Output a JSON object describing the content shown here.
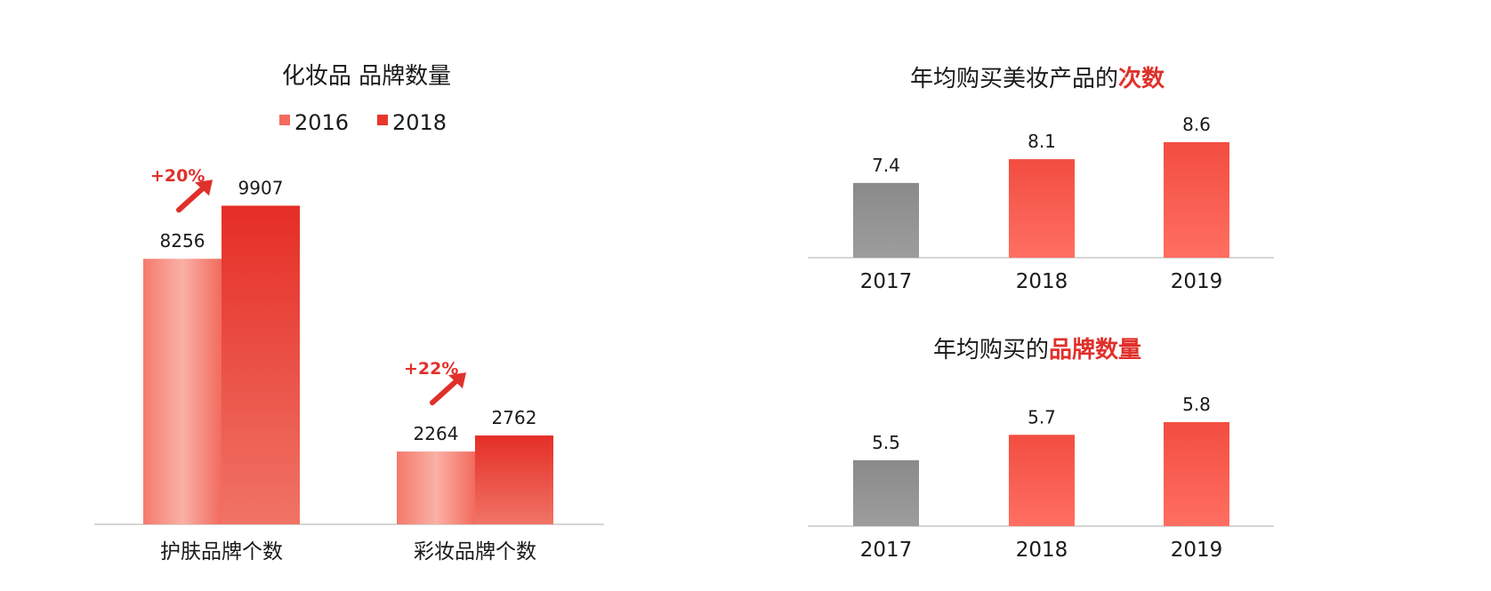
{
  "colors": {
    "accent": "#e0302b",
    "series_2016": "#f26b5e",
    "series_2018": "#e8362c",
    "gray": "#8f8f8f",
    "axis": "#d6d6d6"
  },
  "chart_data": [
    {
      "type": "bar",
      "title": "化妆品 品牌数量",
      "categories": [
        "护肤品牌个数",
        "彩妆品牌个数"
      ],
      "series": [
        {
          "name": "2016",
          "values": [
            8256,
            2264
          ]
        },
        {
          "name": "2018",
          "values": [
            9907,
            2762
          ]
        }
      ],
      "growth_labels": [
        "+20%",
        "+22%"
      ],
      "legend": "top",
      "ylim": [
        0,
        10500
      ],
      "grid": false
    },
    {
      "type": "bar",
      "title": "年均购买美妆产品的",
      "title_highlight": "次数",
      "categories": [
        "2017",
        "2018",
        "2019"
      ],
      "values": [
        7.4,
        8.1,
        8.6
      ],
      "colors": [
        "gray",
        "red",
        "red"
      ],
      "ylim": [
        5.2,
        8.6
      ],
      "grid": false
    },
    {
      "type": "bar",
      "title": "年均购买的",
      "title_highlight": "品牌数量",
      "categories": [
        "2017",
        "2018",
        "2019"
      ],
      "values": [
        5.5,
        5.7,
        5.8
      ],
      "colors": [
        "gray",
        "red",
        "red"
      ],
      "ylim": [
        4.98,
        5.8
      ],
      "grid": false
    }
  ]
}
